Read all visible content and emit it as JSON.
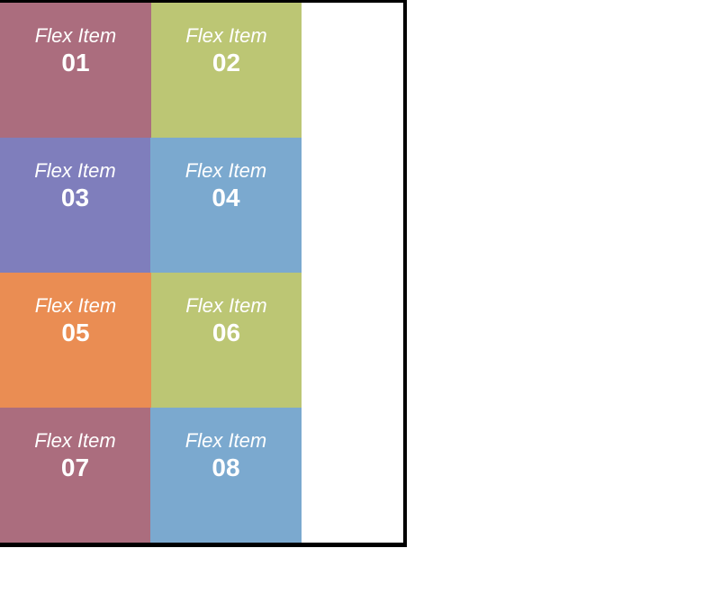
{
  "container": {
    "items": [
      {
        "label": "Flex Item",
        "number": "01",
        "color": "#ab6d7e"
      },
      {
        "label": "Flex Item",
        "number": "02",
        "color": "#bcc674"
      },
      {
        "label": "Flex Item",
        "number": "03",
        "color": "#7f7ebc"
      },
      {
        "label": "Flex Item",
        "number": "04",
        "color": "#7ba9cf"
      },
      {
        "label": "Flex Item",
        "number": "05",
        "color": "#ea8d53"
      },
      {
        "label": "Flex Item",
        "number": "06",
        "color": "#bcc674"
      },
      {
        "label": "Flex Item",
        "number": "07",
        "color": "#ab6d7e"
      },
      {
        "label": "Flex Item",
        "number": "08",
        "color": "#7ba9cf"
      }
    ]
  }
}
